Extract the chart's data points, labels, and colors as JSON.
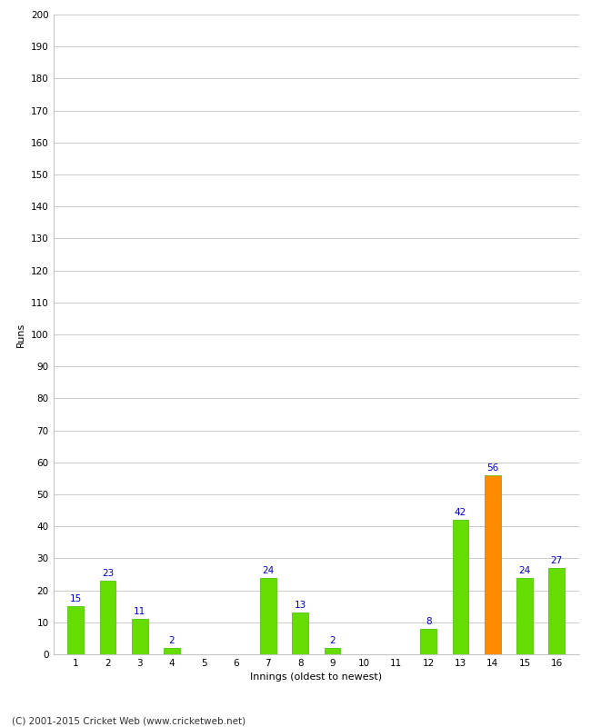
{
  "xlabel": "Innings (oldest to newest)",
  "ylabel": "Runs",
  "categories": [
    "1",
    "2",
    "3",
    "4",
    "5",
    "6",
    "7",
    "8",
    "9",
    "10",
    "11",
    "12",
    "13",
    "14",
    "15",
    "16"
  ],
  "values": [
    15,
    23,
    11,
    2,
    0,
    0,
    24,
    13,
    2,
    0,
    0,
    8,
    42,
    56,
    24,
    27
  ],
  "bar_colors": [
    "#66dd00",
    "#66dd00",
    "#66dd00",
    "#66dd00",
    "#66dd00",
    "#66dd00",
    "#66dd00",
    "#66dd00",
    "#66dd00",
    "#66dd00",
    "#66dd00",
    "#66dd00",
    "#66dd00",
    "#ff8c00",
    "#66dd00",
    "#66dd00"
  ],
  "ylim": [
    0,
    200
  ],
  "yticks": [
    0,
    10,
    20,
    30,
    40,
    50,
    60,
    70,
    80,
    90,
    100,
    110,
    120,
    130,
    140,
    150,
    160,
    170,
    180,
    190,
    200
  ],
  "label_color": "#0000cc",
  "footer": "(C) 2001-2015 Cricket Web (www.cricketweb.net)",
  "background_color": "#ffffff",
  "grid_color": "#cccccc",
  "bar_edge_color": "#44bb00",
  "axis_label_fontsize": 8,
  "tick_fontsize": 7.5,
  "value_label_fontsize": 7.5,
  "footer_fontsize": 7.5
}
